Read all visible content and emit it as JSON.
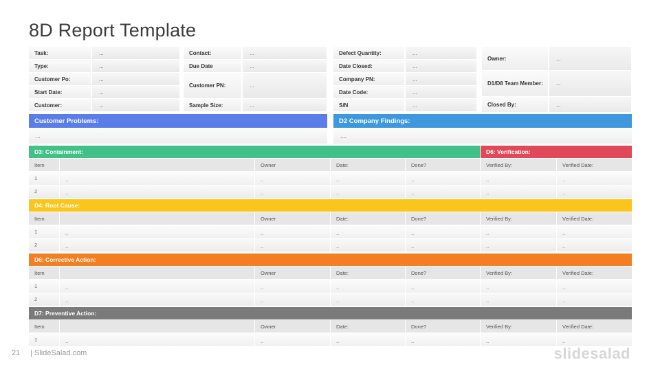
{
  "title": "8D Report Template",
  "placeholder": "...",
  "header_rows": {
    "col1": [
      {
        "label": "Task:",
        "value": "..."
      },
      {
        "label": "Type:",
        "value": "..."
      },
      {
        "label": "Customer Po:",
        "value": "..."
      },
      {
        "label": "Start Date:",
        "value": "..."
      },
      {
        "label": "Customer:",
        "value": "..."
      }
    ],
    "col2": [
      {
        "label": "Contact:",
        "value": "..."
      },
      {
        "label": "Due Date",
        "value": "..."
      },
      {
        "label": "Customer PN:",
        "value": "..."
      },
      {
        "label": "Sample Size:",
        "value": "..."
      }
    ],
    "col3": [
      {
        "label": "Defect Quantity:",
        "value": "..."
      },
      {
        "label": "Date Closed:",
        "value": "..."
      },
      {
        "label": "Company PN:",
        "value": "..."
      },
      {
        "label": "Date Code:",
        "value": "..."
      },
      {
        "label": "S/N",
        "value": "..."
      }
    ],
    "col4": [
      {
        "label": "Owner:",
        "value": "..."
      },
      {
        "label": "D1/D8 Team Member:",
        "value": "..."
      },
      {
        "label": "Closed By:",
        "value": "..."
      }
    ]
  },
  "problems": {
    "customer_label": "Customer Problems:",
    "customer_value": "...",
    "company_label": "D2 Company Findings:",
    "company_value": "...."
  },
  "sections": {
    "containment": "D3: Containment:",
    "verification": "D6: Verification:",
    "root_cause": "D4: Root Cause:",
    "corrective": "D6: Corrective Action:",
    "preventive": "D7: Preventive Action:"
  },
  "table_headers": {
    "item": "Item",
    "owner": "Owner",
    "date": "Date:",
    "done": "Done?",
    "verified_by": "Verified By:",
    "verified_date": "Verified Date:"
  },
  "row_numbers": [
    "1",
    "2"
  ],
  "cell_placeholder": "..",
  "colors": {
    "customer_problems": "#5b7de8",
    "company_findings": "#3d98dd",
    "containment": "#41c187",
    "verification": "#e04a58",
    "root_cause": "#fcc51b",
    "corrective": "#f47f22",
    "preventive": "#7a7a7a"
  },
  "footer": {
    "slide_number": "21",
    "site": "| SlideSalad.com",
    "logo": "slidesalad"
  }
}
